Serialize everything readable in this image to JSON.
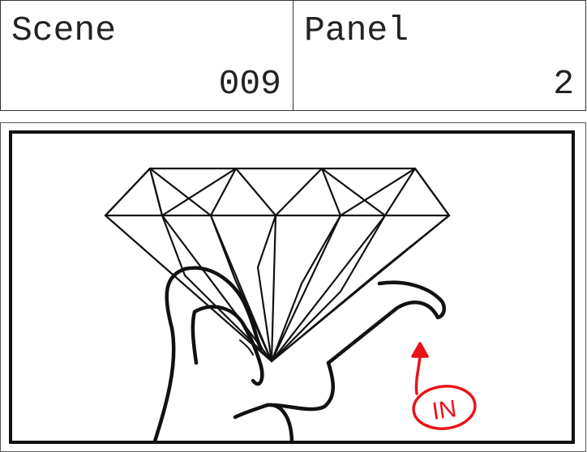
{
  "scene": {
    "label": "Scene",
    "number": "009"
  },
  "panel": {
    "label": "Panel",
    "number": "2"
  },
  "drawing": {
    "subject": "diamond-held-in-hand",
    "annotation": {
      "text": "IN",
      "color": "#e8141a"
    },
    "ink_color": "#111111"
  }
}
